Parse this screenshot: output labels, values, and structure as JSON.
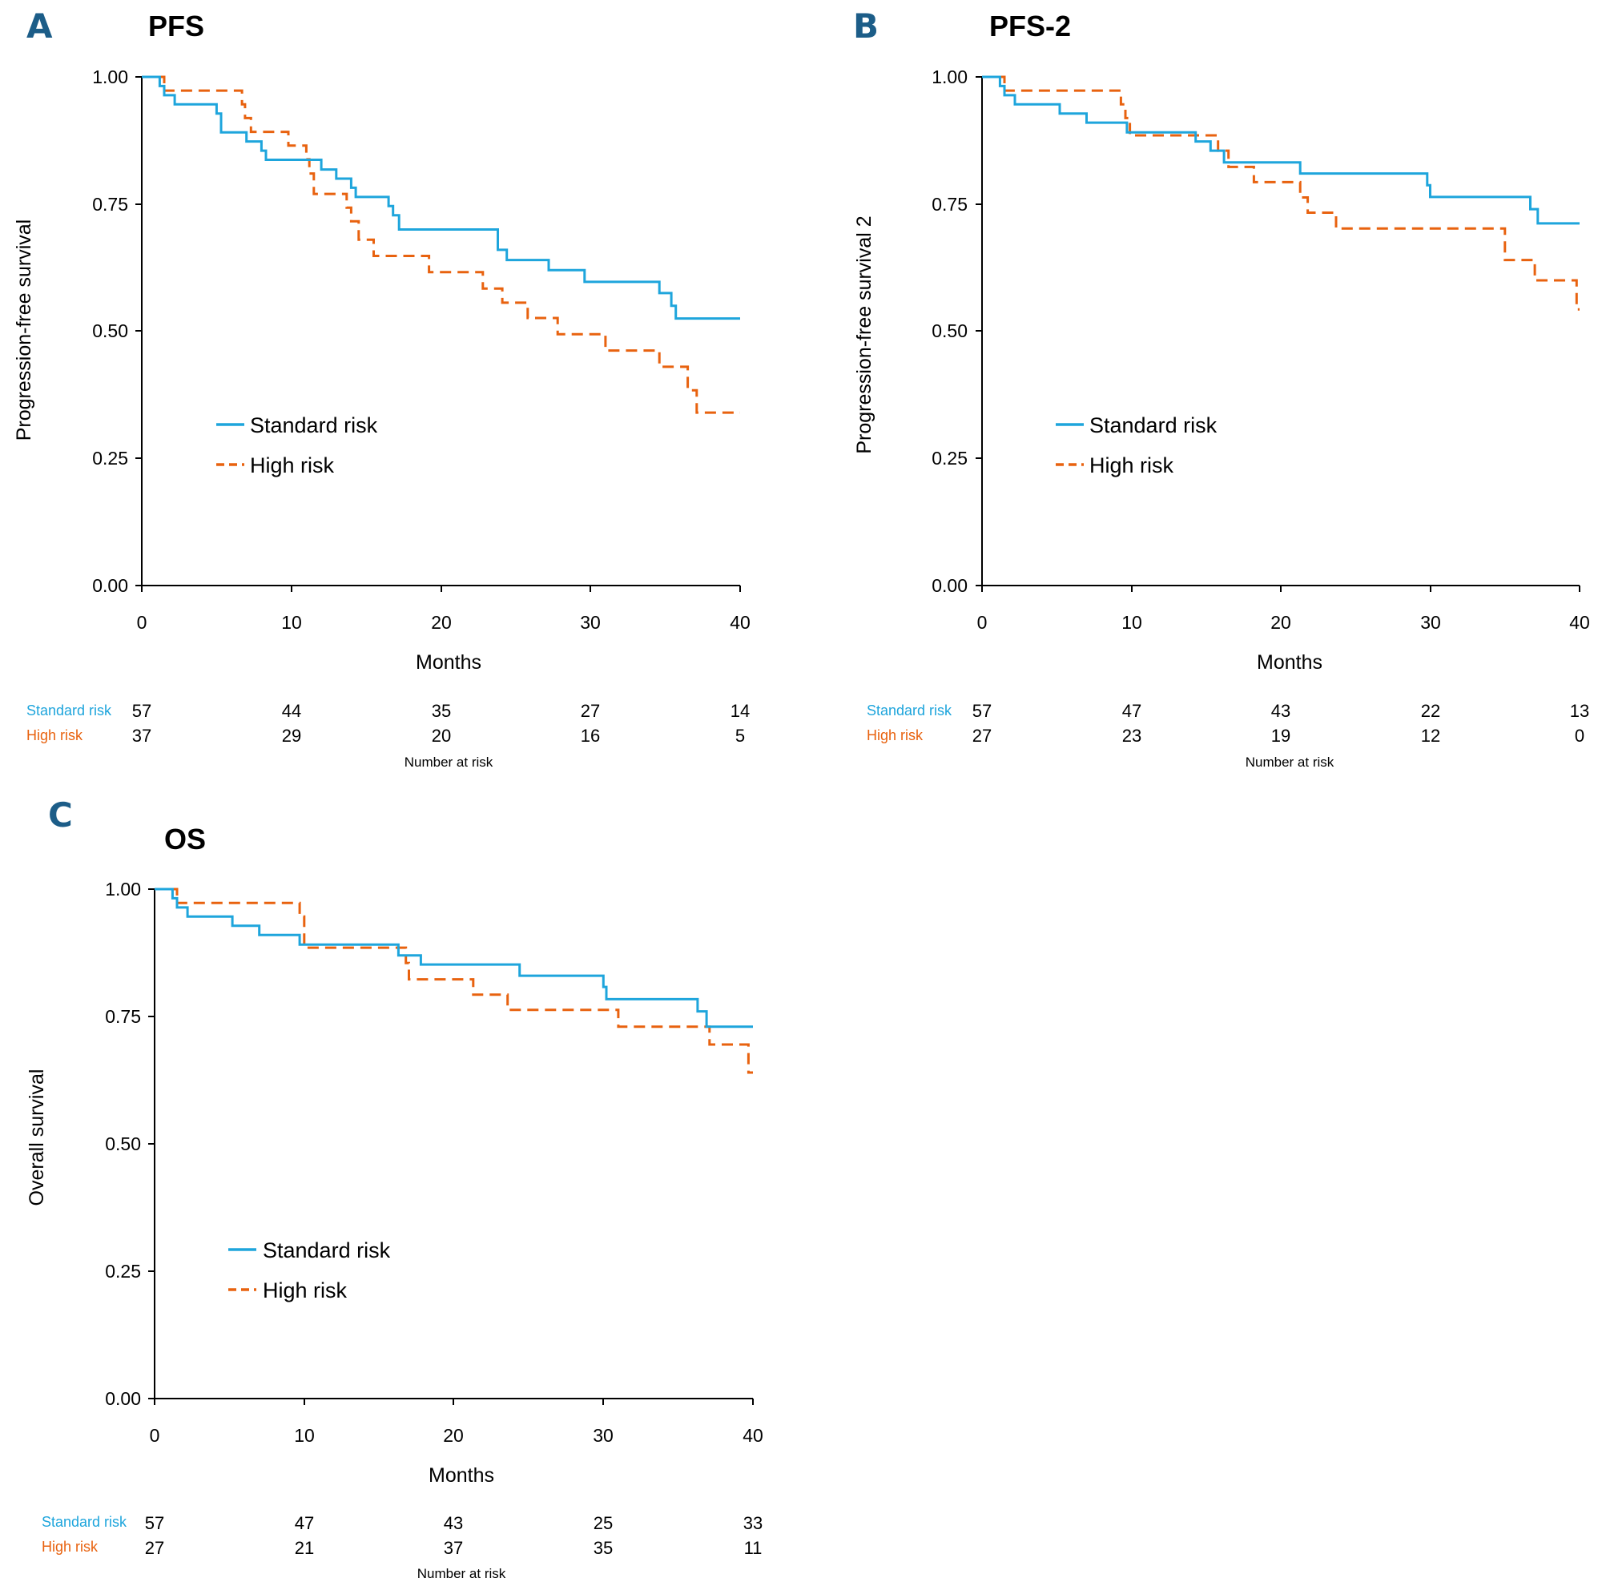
{
  "colors": {
    "standard": "#1ea5dc",
    "high": "#e8620f",
    "letter": "#1c5d88"
  },
  "chart_data": [
    {
      "id": "A",
      "panel_label": "A",
      "title": "PFS",
      "type": "line",
      "xlabel": "Months",
      "ylabel": "Progression-free survival",
      "xlim": [
        0,
        40
      ],
      "ylim": [
        0,
        1
      ],
      "xticks": [
        "0",
        "10",
        "20",
        "30",
        "40"
      ],
      "yticks": [
        "0.00",
        "0.25",
        "0.50",
        "0.75",
        "1.00"
      ],
      "legend": {
        "placement": "center-left",
        "entries": [
          "Standard risk",
          "High risk"
        ]
      },
      "series": [
        {
          "name": "Standard risk",
          "steps": [
            [
              0,
              1
            ],
            [
              1.2,
              0.982
            ],
            [
              1.5,
              0.964
            ],
            [
              2.2,
              0.946
            ],
            [
              5,
              0.928
            ],
            [
              5.3,
              0.891
            ],
            [
              7,
              0.873
            ],
            [
              8,
              0.855
            ],
            [
              8.3,
              0.837
            ],
            [
              12,
              0.818
            ],
            [
              13,
              0.8
            ],
            [
              14,
              0.782
            ],
            [
              14.3,
              0.764
            ],
            [
              16.5,
              0.746
            ],
            [
              16.8,
              0.728
            ],
            [
              17.2,
              0.7
            ],
            [
              23.8,
              0.66
            ],
            [
              24.4,
              0.64
            ],
            [
              27.2,
              0.62
            ],
            [
              29.6,
              0.597
            ],
            [
              34.6,
              0.575
            ],
            [
              35.4,
              0.55
            ],
            [
              35.7,
              0.525
            ],
            [
              40,
              0.525
            ]
          ]
        },
        {
          "name": "High risk",
          "steps": [
            [
              0,
              1
            ],
            [
              1.5,
              0.973
            ],
            [
              6.7,
              0.946
            ],
            [
              6.9,
              0.919
            ],
            [
              7.3,
              0.892
            ],
            [
              9.8,
              0.865
            ],
            [
              11,
              0.838
            ],
            [
              11.2,
              0.81
            ],
            [
              11.5,
              0.77
            ],
            [
              13.7,
              0.743
            ],
            [
              14,
              0.716
            ],
            [
              14.5,
              0.68
            ],
            [
              15.5,
              0.648
            ],
            [
              19.2,
              0.616
            ],
            [
              22.8,
              0.584
            ],
            [
              24.1,
              0.556
            ],
            [
              25.8,
              0.526
            ],
            [
              27.8,
              0.494
            ],
            [
              31,
              0.462
            ],
            [
              34.6,
              0.43
            ],
            [
              36.5,
              0.384
            ],
            [
              37.1,
              0.34
            ],
            [
              40,
              0.34
            ]
          ]
        }
      ],
      "risk_table": {
        "caption": "Number at risk",
        "rows": [
          {
            "label": "Standard risk",
            "values": [
              "57",
              "44",
              "35",
              "27",
              "14"
            ]
          },
          {
            "label": "High risk",
            "values": [
              "37",
              "29",
              "20",
              "16",
              "5"
            ]
          }
        ]
      }
    },
    {
      "id": "B",
      "panel_label": "B",
      "title": "PFS-2",
      "type": "line",
      "xlabel": "Months",
      "ylabel": "Progression-free survival 2",
      "xlim": [
        0,
        40
      ],
      "ylim": [
        0,
        1
      ],
      "xticks": [
        "0",
        "10",
        "20",
        "30",
        "40"
      ],
      "yticks": [
        "0.00",
        "0.25",
        "0.50",
        "0.75",
        "1.00"
      ],
      "legend": {
        "placement": "center-left",
        "entries": [
          "Standard risk",
          "High risk"
        ]
      },
      "series": [
        {
          "name": "Standard risk",
          "steps": [
            [
              0,
              1
            ],
            [
              1.2,
              0.982
            ],
            [
              1.5,
              0.964
            ],
            [
              2.2,
              0.946
            ],
            [
              5.2,
              0.928
            ],
            [
              7,
              0.91
            ],
            [
              9.7,
              0.891
            ],
            [
              14.3,
              0.873
            ],
            [
              15.3,
              0.855
            ],
            [
              16.2,
              0.832
            ],
            [
              21.3,
              0.81
            ],
            [
              29.8,
              0.787
            ],
            [
              30,
              0.764
            ],
            [
              36.7,
              0.74
            ],
            [
              37.2,
              0.712
            ],
            [
              40,
              0.712
            ]
          ]
        },
        {
          "name": "High risk",
          "steps": [
            [
              0,
              1
            ],
            [
              1.5,
              0.973
            ],
            [
              9.3,
              0.946
            ],
            [
              9.6,
              0.919
            ],
            [
              9.9,
              0.885
            ],
            [
              15.8,
              0.855
            ],
            [
              16.5,
              0.823
            ],
            [
              18.2,
              0.793
            ],
            [
              21.3,
              0.763
            ],
            [
              21.8,
              0.733
            ],
            [
              23.7,
              0.702
            ],
            [
              35,
              0.64
            ],
            [
              37,
              0.6
            ],
            [
              39.8,
              0.543
            ],
            [
              40,
              0.543
            ]
          ]
        }
      ],
      "risk_table": {
        "caption": "Number at risk",
        "rows": [
          {
            "label": "Standard risk",
            "values": [
              "57",
              "47",
              "43",
              "22",
              "13"
            ]
          },
          {
            "label": "High risk",
            "values": [
              "27",
              "23",
              "19",
              "12",
              "0"
            ]
          }
        ]
      }
    },
    {
      "id": "C",
      "panel_label": "C",
      "title": "OS",
      "type": "line",
      "xlabel": "Months",
      "ylabel": "Overall survival",
      "xlim": [
        0,
        40
      ],
      "ylim": [
        0,
        1
      ],
      "xticks": [
        "0",
        "10",
        "20",
        "30",
        "40"
      ],
      "yticks": [
        "0.00",
        "0.25",
        "0.50",
        "0.75",
        "1.00"
      ],
      "legend": {
        "placement": "center-left",
        "entries": [
          "Standard risk",
          "High risk"
        ]
      },
      "series": [
        {
          "name": "Standard risk",
          "steps": [
            [
              0,
              1
            ],
            [
              1.2,
              0.982
            ],
            [
              1.5,
              0.964
            ],
            [
              2.2,
              0.946
            ],
            [
              5.2,
              0.928
            ],
            [
              7,
              0.91
            ],
            [
              9.7,
              0.891
            ],
            [
              16.3,
              0.87
            ],
            [
              17.8,
              0.852
            ],
            [
              24.4,
              0.83
            ],
            [
              30,
              0.808
            ],
            [
              30.2,
              0.784
            ],
            [
              36.3,
              0.76
            ],
            [
              36.9,
              0.73
            ],
            [
              40,
              0.73
            ]
          ]
        },
        {
          "name": "High risk",
          "steps": [
            [
              0,
              1
            ],
            [
              1.5,
              0.973
            ],
            [
              9.7,
              0.946
            ],
            [
              10,
              0.885
            ],
            [
              16.8,
              0.855
            ],
            [
              17,
              0.823
            ],
            [
              21.3,
              0.793
            ],
            [
              23.6,
              0.763
            ],
            [
              31,
              0.73
            ],
            [
              37.1,
              0.695
            ],
            [
              39.7,
              0.64
            ],
            [
              40,
              0.64
            ]
          ]
        }
      ],
      "risk_table": {
        "caption": "Number at risk",
        "rows": [
          {
            "label": "Standard risk",
            "values": [
              "57",
              "47",
              "43",
              "25",
              "33"
            ]
          },
          {
            "label": "High risk",
            "values": [
              "27",
              "21",
              "37",
              "35",
              "11"
            ]
          }
        ]
      }
    }
  ]
}
